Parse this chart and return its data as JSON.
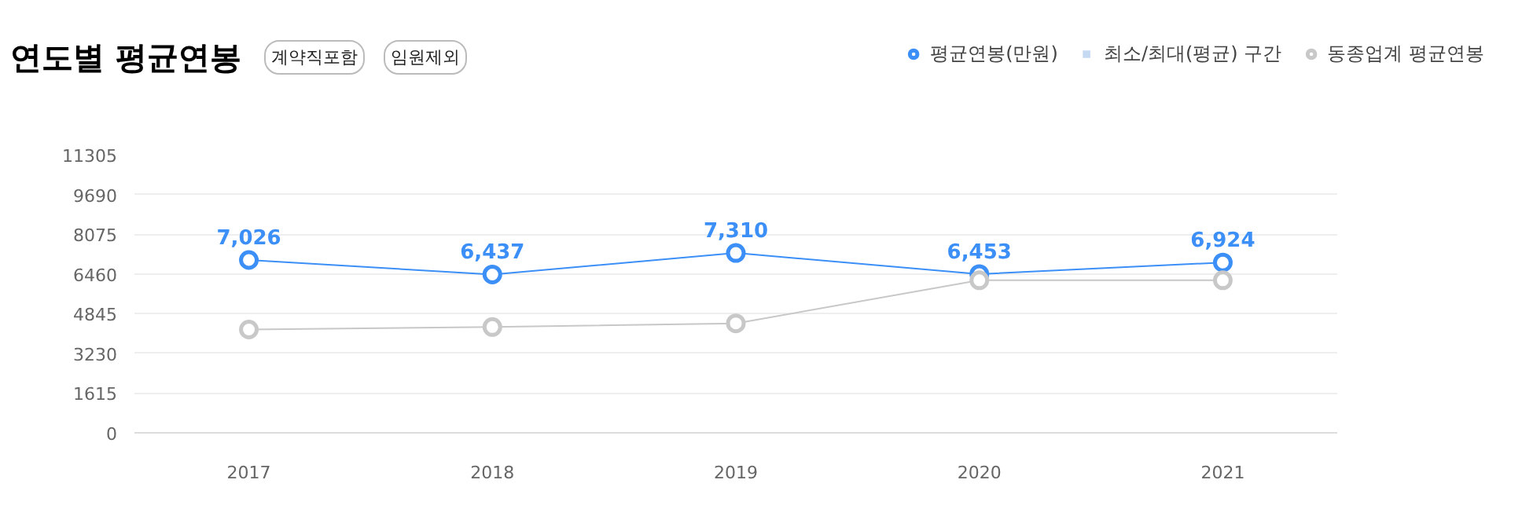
{
  "chart_data": {
    "type": "line",
    "title": "연도별 평균연봉",
    "annotations": [
      "계약직포함",
      "임원제외"
    ],
    "categories": [
      "2017",
      "2018",
      "2019",
      "2020",
      "2021"
    ],
    "series": [
      {
        "name": "평균연봉(만원)",
        "color": "#3b8ff7",
        "values": [
          7026,
          6437,
          7310,
          6453,
          6924
        ],
        "value_labels": [
          "7,026",
          "6,437",
          "7,310",
          "6,453",
          "6,924"
        ],
        "marker": "circle"
      },
      {
        "name": "최소/최대(평균) 구간",
        "type": "area",
        "color": "#c6d9f3",
        "values": [
          null,
          null,
          null,
          null,
          null
        ]
      },
      {
        "name": "동종업계 평균연봉",
        "color": "#c8c8c8",
        "values": [
          4200,
          4300,
          4450,
          6200,
          6200
        ],
        "marker": "circle"
      }
    ],
    "ylim": [
      0,
      11305
    ],
    "yticks": [
      0,
      1615,
      3230,
      4845,
      6460,
      8075,
      9690,
      11305
    ],
    "grid": "y",
    "legend": "top right"
  }
}
